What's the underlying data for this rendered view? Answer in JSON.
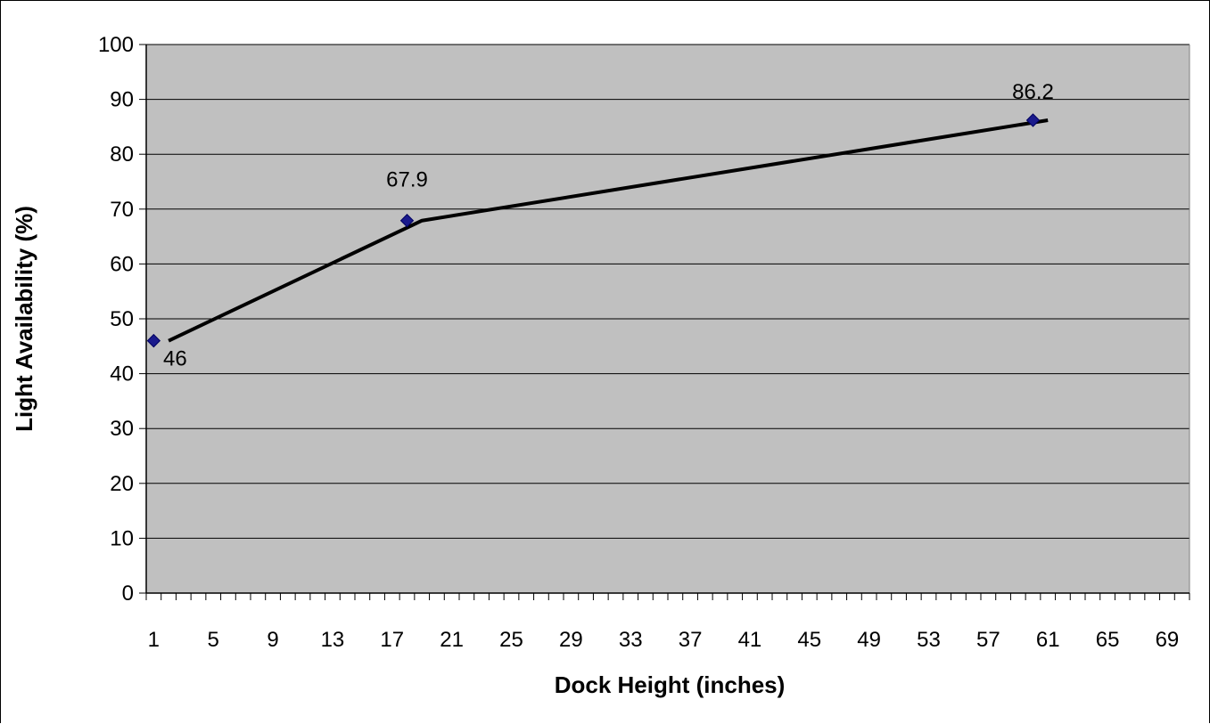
{
  "chart_data": {
    "type": "line",
    "title": "",
    "xlabel": "Dock Height (inches)",
    "ylabel": "Light Availability (%)",
    "xlim": [
      0,
      70
    ],
    "ylim": [
      0,
      100
    ],
    "y_ticks": [
      0,
      10,
      20,
      30,
      40,
      50,
      60,
      70,
      80,
      90,
      100
    ],
    "x_tick_labels": [
      1,
      5,
      9,
      13,
      17,
      21,
      25,
      29,
      33,
      37,
      41,
      45,
      49,
      53,
      57,
      61,
      65,
      69
    ],
    "grid": "horizontal",
    "legend": "none",
    "series": [
      {
        "points": [
          {
            "x": 1,
            "y": 46,
            "label": "46"
          },
          {
            "x": 18,
            "y": 67.9,
            "label": "67.9"
          },
          {
            "x": 60,
            "y": 86.2,
            "label": "86.2"
          }
        ]
      }
    ],
    "trendline": {
      "type": "linear-segments",
      "points": [
        {
          "x": 2,
          "y": 46
        },
        {
          "x": 19,
          "y": 67.9
        },
        {
          "x": 61,
          "y": 86.2
        }
      ]
    },
    "colors": {
      "plot_background": "#c0c0c0",
      "gridline": "#000000",
      "marker": "#1a1a8c",
      "line": "#000000"
    }
  }
}
